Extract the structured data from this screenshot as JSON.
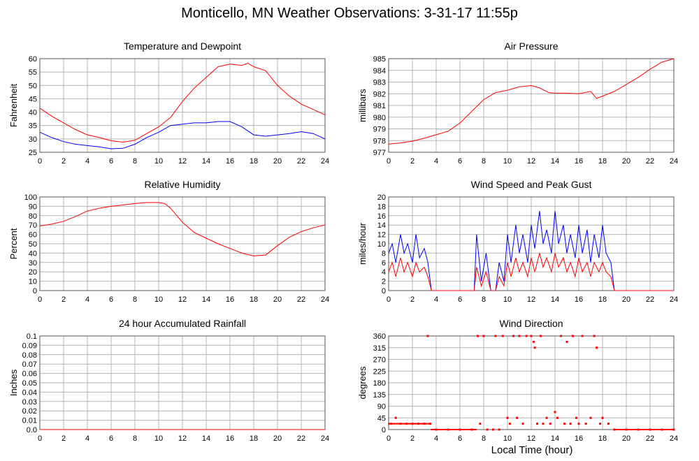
{
  "title": "Monticello, MN Weather Observations: 3-31-17 11:55p",
  "x_axis_label": "Local Time (hour)",
  "colors": {
    "series1": "#ff0000",
    "series2": "#0000ff",
    "grid": "#b4b4b4"
  },
  "chart_data": [
    {
      "id": "temperature",
      "type": "line",
      "title": "Temperature and Dewpoint",
      "ylabel": "Fahrenheit",
      "xlim": [
        0,
        24
      ],
      "ylim": [
        25,
        60
      ],
      "x_ticks": [
        0,
        2,
        4,
        6,
        8,
        10,
        12,
        14,
        16,
        18,
        20,
        22,
        24
      ],
      "y_ticks": [
        25,
        30,
        35,
        40,
        45,
        50,
        55,
        60
      ],
      "grid": true,
      "series": [
        {
          "color": "#ff0000",
          "x": [
            0,
            1,
            2,
            3,
            4,
            5,
            6,
            7,
            8,
            9,
            10,
            11,
            12,
            13,
            14,
            15,
            16,
            17,
            17.5,
            18,
            19,
            20,
            21,
            22,
            23,
            24
          ],
          "y": [
            41.5,
            38.5,
            36,
            33.5,
            31.5,
            30.5,
            29.3,
            28.8,
            29.5,
            32,
            34.5,
            38,
            44,
            49,
            53,
            57,
            58,
            57.5,
            58.3,
            57,
            55.5,
            50,
            46,
            43,
            41,
            39
          ]
        },
        {
          "color": "#0000ff",
          "x": [
            0,
            1,
            2,
            3,
            4,
            5,
            6,
            7,
            8,
            9,
            10,
            11,
            12,
            13,
            14,
            15,
            16,
            17,
            18,
            19,
            20,
            21,
            22,
            23,
            24
          ],
          "y": [
            32.5,
            30.5,
            29,
            28,
            27.5,
            27,
            26.3,
            26.5,
            28,
            30.5,
            32.5,
            35,
            35.5,
            36,
            36,
            36.5,
            36.5,
            34.5,
            31.5,
            31,
            31.5,
            32,
            32.7,
            32,
            30
          ]
        }
      ]
    },
    {
      "id": "pressure",
      "type": "line",
      "title": "Air Pressure",
      "ylabel": "millibars",
      "xlim": [
        0,
        24
      ],
      "ylim": [
        977,
        985
      ],
      "x_ticks": [
        0,
        2,
        4,
        6,
        8,
        10,
        12,
        14,
        16,
        18,
        20,
        22,
        24
      ],
      "y_ticks": [
        977,
        978,
        979,
        980,
        981,
        982,
        983,
        984,
        985
      ],
      "grid": true,
      "series": [
        {
          "color": "#ff0000",
          "x": [
            0,
            1,
            2,
            3,
            4,
            5,
            6,
            7,
            8,
            9,
            10,
            11,
            12,
            12.7,
            13.5,
            14,
            15,
            16,
            17,
            17.5,
            18,
            19,
            20,
            21,
            22,
            23,
            24
          ],
          "y": [
            977.7,
            977.8,
            977.95,
            978.2,
            978.5,
            978.8,
            979.5,
            980.5,
            981.5,
            982.1,
            982.3,
            982.6,
            982.7,
            982.5,
            982.1,
            982.05,
            982.05,
            982.0,
            982.2,
            981.6,
            981.8,
            982.2,
            982.8,
            983.4,
            984.1,
            984.7,
            985.0
          ]
        }
      ]
    },
    {
      "id": "humidity",
      "type": "line",
      "title": "Relative Humidity",
      "ylabel": "Percent",
      "xlim": [
        0,
        24
      ],
      "ylim": [
        0,
        100
      ],
      "x_ticks": [
        0,
        2,
        4,
        6,
        8,
        10,
        12,
        14,
        16,
        18,
        20,
        22,
        24
      ],
      "y_ticks": [
        0,
        10,
        20,
        30,
        40,
        50,
        60,
        70,
        80,
        90,
        100
      ],
      "grid": true,
      "series": [
        {
          "color": "#ff0000",
          "x": [
            0,
            1,
            2,
            3,
            4,
            5,
            6,
            7,
            8,
            9,
            10,
            10.5,
            11,
            12,
            13,
            14,
            15,
            16,
            17,
            18,
            19,
            20,
            21,
            22,
            23,
            24
          ],
          "y": [
            69,
            71,
            74,
            79,
            85,
            88,
            90,
            91.5,
            93,
            94,
            94,
            93,
            88,
            73,
            62,
            56,
            50,
            45,
            40,
            37,
            38,
            48,
            57,
            63,
            67,
            70
          ]
        }
      ]
    },
    {
      "id": "wind",
      "type": "line",
      "title": "Wind Speed and Peak Gust",
      "ylabel": "miles/hour",
      "xlim": [
        0,
        24
      ],
      "ylim": [
        0,
        20
      ],
      "x_ticks": [
        0,
        2,
        4,
        6,
        8,
        10,
        12,
        14,
        16,
        18,
        20,
        22,
        24
      ],
      "y_ticks": [
        0,
        2,
        4,
        6,
        8,
        10,
        12,
        14,
        16,
        18,
        20
      ],
      "grid": true,
      "series": [
        {
          "color": "#0000ff",
          "x": [
            0,
            0.3,
            0.6,
            1,
            1.3,
            1.6,
            2,
            2.3,
            2.6,
            3,
            3.3,
            3.6,
            4,
            7.2,
            7.4,
            7.8,
            8.2,
            8.6,
            9,
            9.3,
            9.7,
            10,
            10.3,
            10.7,
            11,
            11.3,
            11.7,
            12,
            12.3,
            12.7,
            13,
            13.3,
            13.7,
            14,
            14.3,
            14.7,
            15,
            15.3,
            15.7,
            16,
            16.3,
            16.7,
            17,
            17.3,
            17.7,
            18,
            18.3,
            18.7,
            19,
            19.2,
            24
          ],
          "y": [
            8,
            10,
            6,
            12,
            8,
            10,
            6,
            12,
            7,
            9,
            6,
            0,
            0,
            0,
            12,
            2,
            8,
            0,
            0,
            6,
            2,
            12,
            6,
            14,
            8,
            12,
            6,
            14,
            9,
            17,
            10,
            13,
            8,
            17,
            10,
            14,
            8,
            12,
            7,
            14,
            8,
            13,
            6,
            12,
            7,
            14,
            8,
            6,
            0,
            0,
            0
          ]
        },
        {
          "color": "#ff0000",
          "x": [
            0,
            0.3,
            0.6,
            1,
            1.3,
            1.6,
            2,
            2.3,
            2.6,
            3,
            3.3,
            3.6,
            4,
            7.2,
            7.4,
            7.8,
            8.2,
            8.6,
            9,
            9.3,
            9.7,
            10,
            10.3,
            10.7,
            11,
            11.3,
            11.7,
            12,
            12.3,
            12.7,
            13,
            13.3,
            13.7,
            14,
            14.3,
            14.7,
            15,
            15.3,
            15.7,
            16,
            16.3,
            16.7,
            17,
            17.3,
            17.7,
            18,
            18.3,
            18.7,
            19,
            19.2,
            24
          ],
          "y": [
            4,
            6,
            3,
            7,
            4,
            6,
            3,
            6,
            4,
            5,
            3,
            0,
            0,
            0,
            5,
            1,
            4,
            0,
            0,
            3,
            1,
            6,
            3,
            7,
            4,
            6,
            3,
            7,
            4,
            8,
            5,
            7,
            4,
            8,
            5,
            7,
            4,
            6,
            3,
            7,
            4,
            6,
            3,
            6,
            4,
            6,
            4,
            3,
            0,
            0,
            0
          ]
        }
      ]
    },
    {
      "id": "rainfall",
      "type": "line",
      "title": "24 hour Accumulated Rainfall",
      "ylabel": "Inches",
      "xlim": [
        0,
        24
      ],
      "ylim": [
        0,
        0.1
      ],
      "x_ticks": [
        0,
        2,
        4,
        6,
        8,
        10,
        12,
        14,
        16,
        18,
        20,
        22,
        24
      ],
      "y_ticks": [
        "0.0",
        "0.01",
        "0.02",
        "0.03",
        "0.04",
        "0.05",
        "0.06",
        "0.07",
        "0.08",
        "0.09",
        "0.1"
      ],
      "grid": true,
      "series": [
        {
          "color": "#ff0000",
          "x": [
            0,
            24
          ],
          "y": [
            0,
            0
          ]
        }
      ]
    },
    {
      "id": "direction",
      "type": "scatter",
      "title": "Wind Direction",
      "ylabel": "degrees",
      "xlim": [
        0,
        24
      ],
      "ylim": [
        0,
        360
      ],
      "x_ticks": [
        0,
        2,
        4,
        6,
        8,
        10,
        12,
        14,
        16,
        18,
        20,
        22,
        24
      ],
      "y_ticks": [
        0,
        45,
        90,
        135,
        180,
        225,
        270,
        315,
        360
      ],
      "grid": true,
      "series": [
        {
          "color": "#ff0000",
          "points": [
            [
              0.2,
              22.5
            ],
            [
              0.6,
              45
            ],
            [
              1,
              22.5
            ],
            [
              1.5,
              22.5
            ],
            [
              2,
              22.5
            ],
            [
              2.5,
              22.5
            ],
            [
              3,
              22.5
            ],
            [
              3.3,
              360
            ],
            [
              3.5,
              22.5
            ],
            [
              4,
              0
            ],
            [
              5,
              0
            ],
            [
              6,
              0
            ],
            [
              7,
              0
            ],
            [
              7.5,
              360
            ],
            [
              7.7,
              22.5
            ],
            [
              8,
              360
            ],
            [
              8.3,
              0
            ],
            [
              8.8,
              0
            ],
            [
              9,
              360
            ],
            [
              9.3,
              0
            ],
            [
              9.6,
              360
            ],
            [
              10,
              45
            ],
            [
              10.2,
              22.5
            ],
            [
              10.5,
              360
            ],
            [
              10.8,
              45
            ],
            [
              11,
              360
            ],
            [
              11.3,
              22.5
            ],
            [
              11.6,
              360
            ],
            [
              12,
              360
            ],
            [
              12.2,
              337.5
            ],
            [
              12.3,
              315
            ],
            [
              12.5,
              22.5
            ],
            [
              12.8,
              360
            ],
            [
              13,
              22.5
            ],
            [
              13.3,
              45
            ],
            [
              13.6,
              22.5
            ],
            [
              14,
              67.5
            ],
            [
              14.2,
              45
            ],
            [
              14.5,
              360
            ],
            [
              14.8,
              22.5
            ],
            [
              15,
              337.5
            ],
            [
              15.3,
              22.5
            ],
            [
              15.5,
              360
            ],
            [
              15.8,
              45
            ],
            [
              16,
              22.5
            ],
            [
              16.3,
              360
            ],
            [
              16.6,
              22.5
            ],
            [
              17,
              45
            ],
            [
              17.3,
              360
            ],
            [
              17.5,
              315
            ],
            [
              17.8,
              22.5
            ],
            [
              18,
              45
            ],
            [
              18.5,
              22.5
            ],
            [
              19,
              0
            ],
            [
              20,
              0
            ],
            [
              21,
              0
            ],
            [
              22,
              0
            ],
            [
              23,
              0
            ],
            [
              24,
              0
            ]
          ]
        }
      ]
    }
  ]
}
